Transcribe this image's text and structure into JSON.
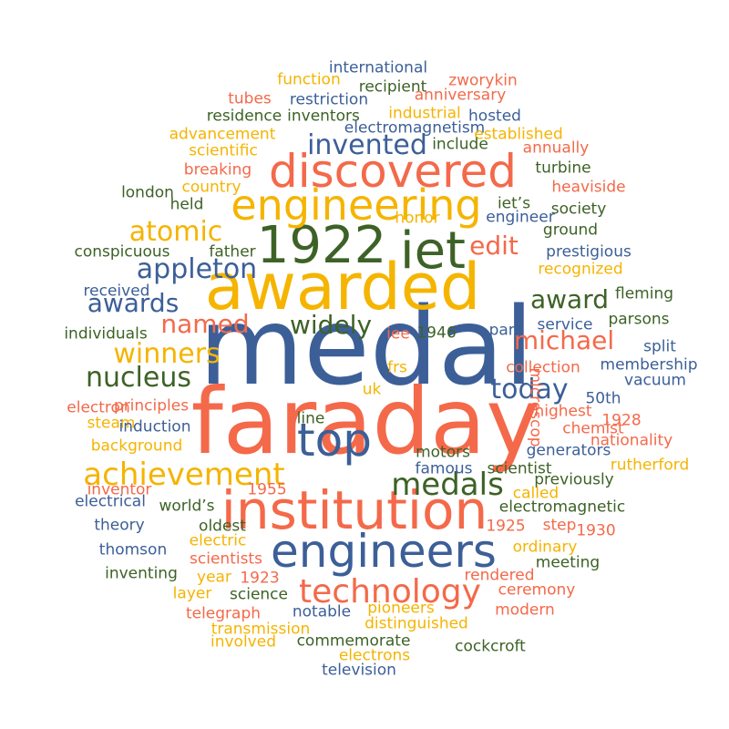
{
  "palette": [
    "#3c5f98",
    "#f5b400",
    "#f4694a",
    "#3d6226"
  ],
  "words": [
    {
      "text": "medal",
      "color": 0
    },
    {
      "text": "faraday",
      "color": 2
    },
    {
      "text": "awarded",
      "color": 1
    },
    {
      "text": "institution",
      "color": 2
    },
    {
      "text": "engineers",
      "color": 0
    },
    {
      "text": "discovered",
      "color": 2
    },
    {
      "text": "1922",
      "color": 3
    },
    {
      "text": "iet",
      "color": 3
    },
    {
      "text": "engineering",
      "color": 1
    },
    {
      "text": "top",
      "color": 0
    },
    {
      "text": "technology",
      "color": 2
    },
    {
      "text": "achievement",
      "color": 1
    },
    {
      "text": "medals",
      "color": 3
    },
    {
      "text": "nucleus",
      "color": 3
    },
    {
      "text": "appleton",
      "color": 0
    },
    {
      "text": "invented",
      "color": 0
    },
    {
      "text": "atomic",
      "color": 1
    },
    {
      "text": "michael",
      "color": 2
    },
    {
      "text": "today",
      "color": 0
    },
    {
      "text": "winners",
      "color": 1
    },
    {
      "text": "awards",
      "color": 0
    },
    {
      "text": "award",
      "color": 3
    },
    {
      "text": "named",
      "color": 2
    },
    {
      "text": "widely",
      "color": 3
    },
    {
      "text": "edit",
      "color": 2
    },
    {
      "text": "international",
      "color": 0
    },
    {
      "text": "zworykin",
      "color": 2
    },
    {
      "text": "function",
      "color": 1
    },
    {
      "text": "recipient",
      "color": 3
    },
    {
      "text": "anniversary",
      "color": 2
    },
    {
      "text": "tubes",
      "color": 2
    },
    {
      "text": "restriction",
      "color": 0
    },
    {
      "text": "industrial",
      "color": 1
    },
    {
      "text": "residence",
      "color": 3
    },
    {
      "text": "inventors",
      "color": 3
    },
    {
      "text": "hosted",
      "color": 0
    },
    {
      "text": "electromagnetism",
      "color": 0
    },
    {
      "text": "advancement",
      "color": 1
    },
    {
      "text": "established",
      "color": 1
    },
    {
      "text": "include",
      "color": 3
    },
    {
      "text": "scientific",
      "color": 1
    },
    {
      "text": "annually",
      "color": 2
    },
    {
      "text": "breaking",
      "color": 2
    },
    {
      "text": "turbine",
      "color": 3
    },
    {
      "text": "country",
      "color": 1
    },
    {
      "text": "heaviside",
      "color": 2
    },
    {
      "text": "london",
      "color": 3
    },
    {
      "text": "held",
      "color": 3
    },
    {
      "text": "iet’s",
      "color": 3
    },
    {
      "text": "society",
      "color": 3
    },
    {
      "text": "engineer",
      "color": 0
    },
    {
      "text": "honor",
      "color": 1
    },
    {
      "text": "ground",
      "color": 3
    },
    {
      "text": "conspicuous",
      "color": 3
    },
    {
      "text": "father",
      "color": 3
    },
    {
      "text": "prestigious",
      "color": 0
    },
    {
      "text": "recognized",
      "color": 1
    },
    {
      "text": "received",
      "color": 0
    },
    {
      "text": "fleming",
      "color": 3
    },
    {
      "text": "individuals",
      "color": 3
    },
    {
      "text": "iee",
      "color": 2
    },
    {
      "text": "1946",
      "color": 3
    },
    {
      "text": "part",
      "color": 0
    },
    {
      "text": "service",
      "color": 0
    },
    {
      "text": "parsons",
      "color": 3
    },
    {
      "text": "split",
      "color": 0
    },
    {
      "text": "frs",
      "color": 1
    },
    {
      "text": "collection",
      "color": 2
    },
    {
      "text": "membership",
      "color": 0
    },
    {
      "text": "vacuum",
      "color": 0
    },
    {
      "text": "uk",
      "color": 1
    },
    {
      "text": "electron",
      "color": 2
    },
    {
      "text": "principles",
      "color": 2
    },
    {
      "text": "50th",
      "color": 0
    },
    {
      "text": "highest",
      "color": 2
    },
    {
      "text": "steam",
      "color": 1
    },
    {
      "text": "line",
      "color": 3
    },
    {
      "text": "chemist",
      "color": 2
    },
    {
      "text": "1928",
      "color": 2
    },
    {
      "text": "induction",
      "color": 0
    },
    {
      "text": "nationality",
      "color": 2
    },
    {
      "text": "background",
      "color": 1
    },
    {
      "text": "motors",
      "color": 3
    },
    {
      "text": "generators",
      "color": 0
    },
    {
      "text": "rutherford",
      "color": 1
    },
    {
      "text": "famous",
      "color": 0
    },
    {
      "text": "scientist",
      "color": 3
    },
    {
      "text": "inventor",
      "color": 2
    },
    {
      "text": "previously",
      "color": 3
    },
    {
      "text": "electrical",
      "color": 0
    },
    {
      "text": "1955",
      "color": 2
    },
    {
      "text": "called",
      "color": 1
    },
    {
      "text": "world’s",
      "color": 3
    },
    {
      "text": "electromagnetic",
      "color": 3
    },
    {
      "text": "theory",
      "color": 0
    },
    {
      "text": "oldest",
      "color": 3
    },
    {
      "text": "step",
      "color": 2
    },
    {
      "text": "1925",
      "color": 2
    },
    {
      "text": "electric",
      "color": 1
    },
    {
      "text": "1930",
      "color": 2
    },
    {
      "text": "thomson",
      "color": 0
    },
    {
      "text": "ordinary",
      "color": 1
    },
    {
      "text": "scientists",
      "color": 2
    },
    {
      "text": "meeting",
      "color": 3
    },
    {
      "text": "inventing",
      "color": 3
    },
    {
      "text": "year",
      "color": 1
    },
    {
      "text": "1923",
      "color": 2
    },
    {
      "text": "rendered",
      "color": 2
    },
    {
      "text": "layer",
      "color": 1
    },
    {
      "text": "science",
      "color": 3
    },
    {
      "text": "ceremony",
      "color": 2
    },
    {
      "text": "telegraph",
      "color": 2
    },
    {
      "text": "notable",
      "color": 0
    },
    {
      "text": "pioneers",
      "color": 1
    },
    {
      "text": "modern",
      "color": 2
    },
    {
      "text": "transmission",
      "color": 1
    },
    {
      "text": "distinguished",
      "color": 1
    },
    {
      "text": "involved",
      "color": 1
    },
    {
      "text": "commemorate",
      "color": 3
    },
    {
      "text": "cockcroft",
      "color": 3
    },
    {
      "text": "electrons",
      "color": 1
    },
    {
      "text": "television",
      "color": 0
    },
    {
      "text": "microscop",
      "color": 2
    }
  ]
}
